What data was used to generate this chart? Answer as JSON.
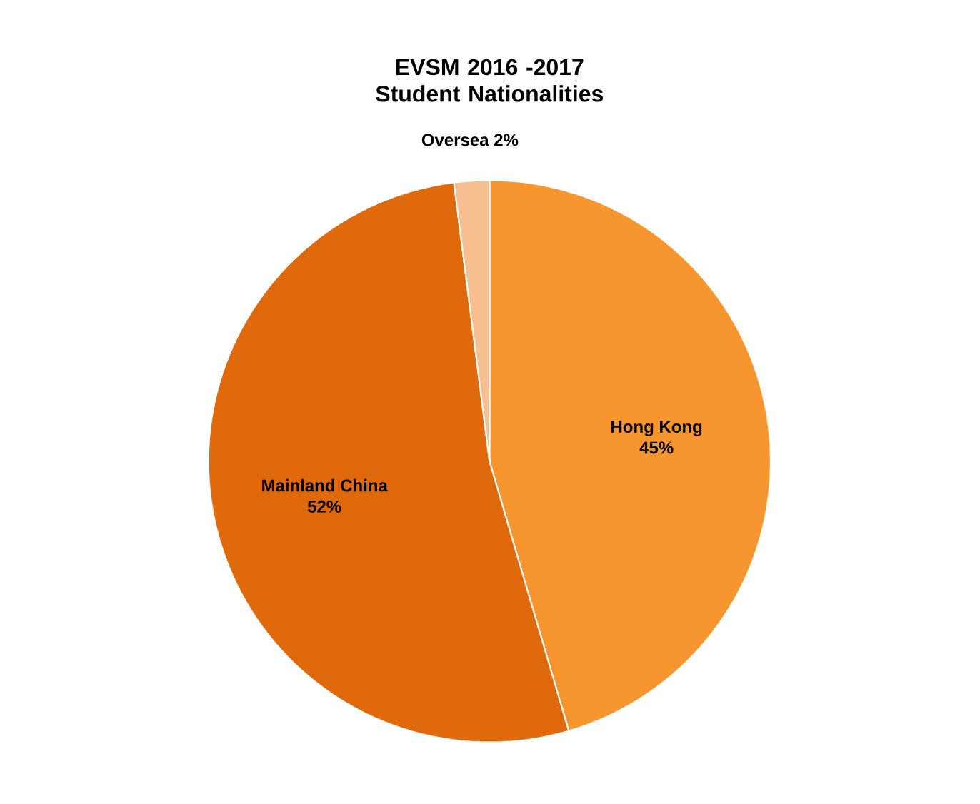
{
  "chart_data": {
    "type": "pie",
    "title": "EVSM 2016 -2017 Student Nationalities",
    "categories": [
      "Hong Kong",
      "Mainland China",
      "Oversea"
    ],
    "values": [
      45,
      52,
      2
    ],
    "value_labels": [
      "45%",
      "52%",
      "2%"
    ],
    "colors": [
      "#f7962f",
      "#e0690c",
      "#f8bf91"
    ]
  }
}
